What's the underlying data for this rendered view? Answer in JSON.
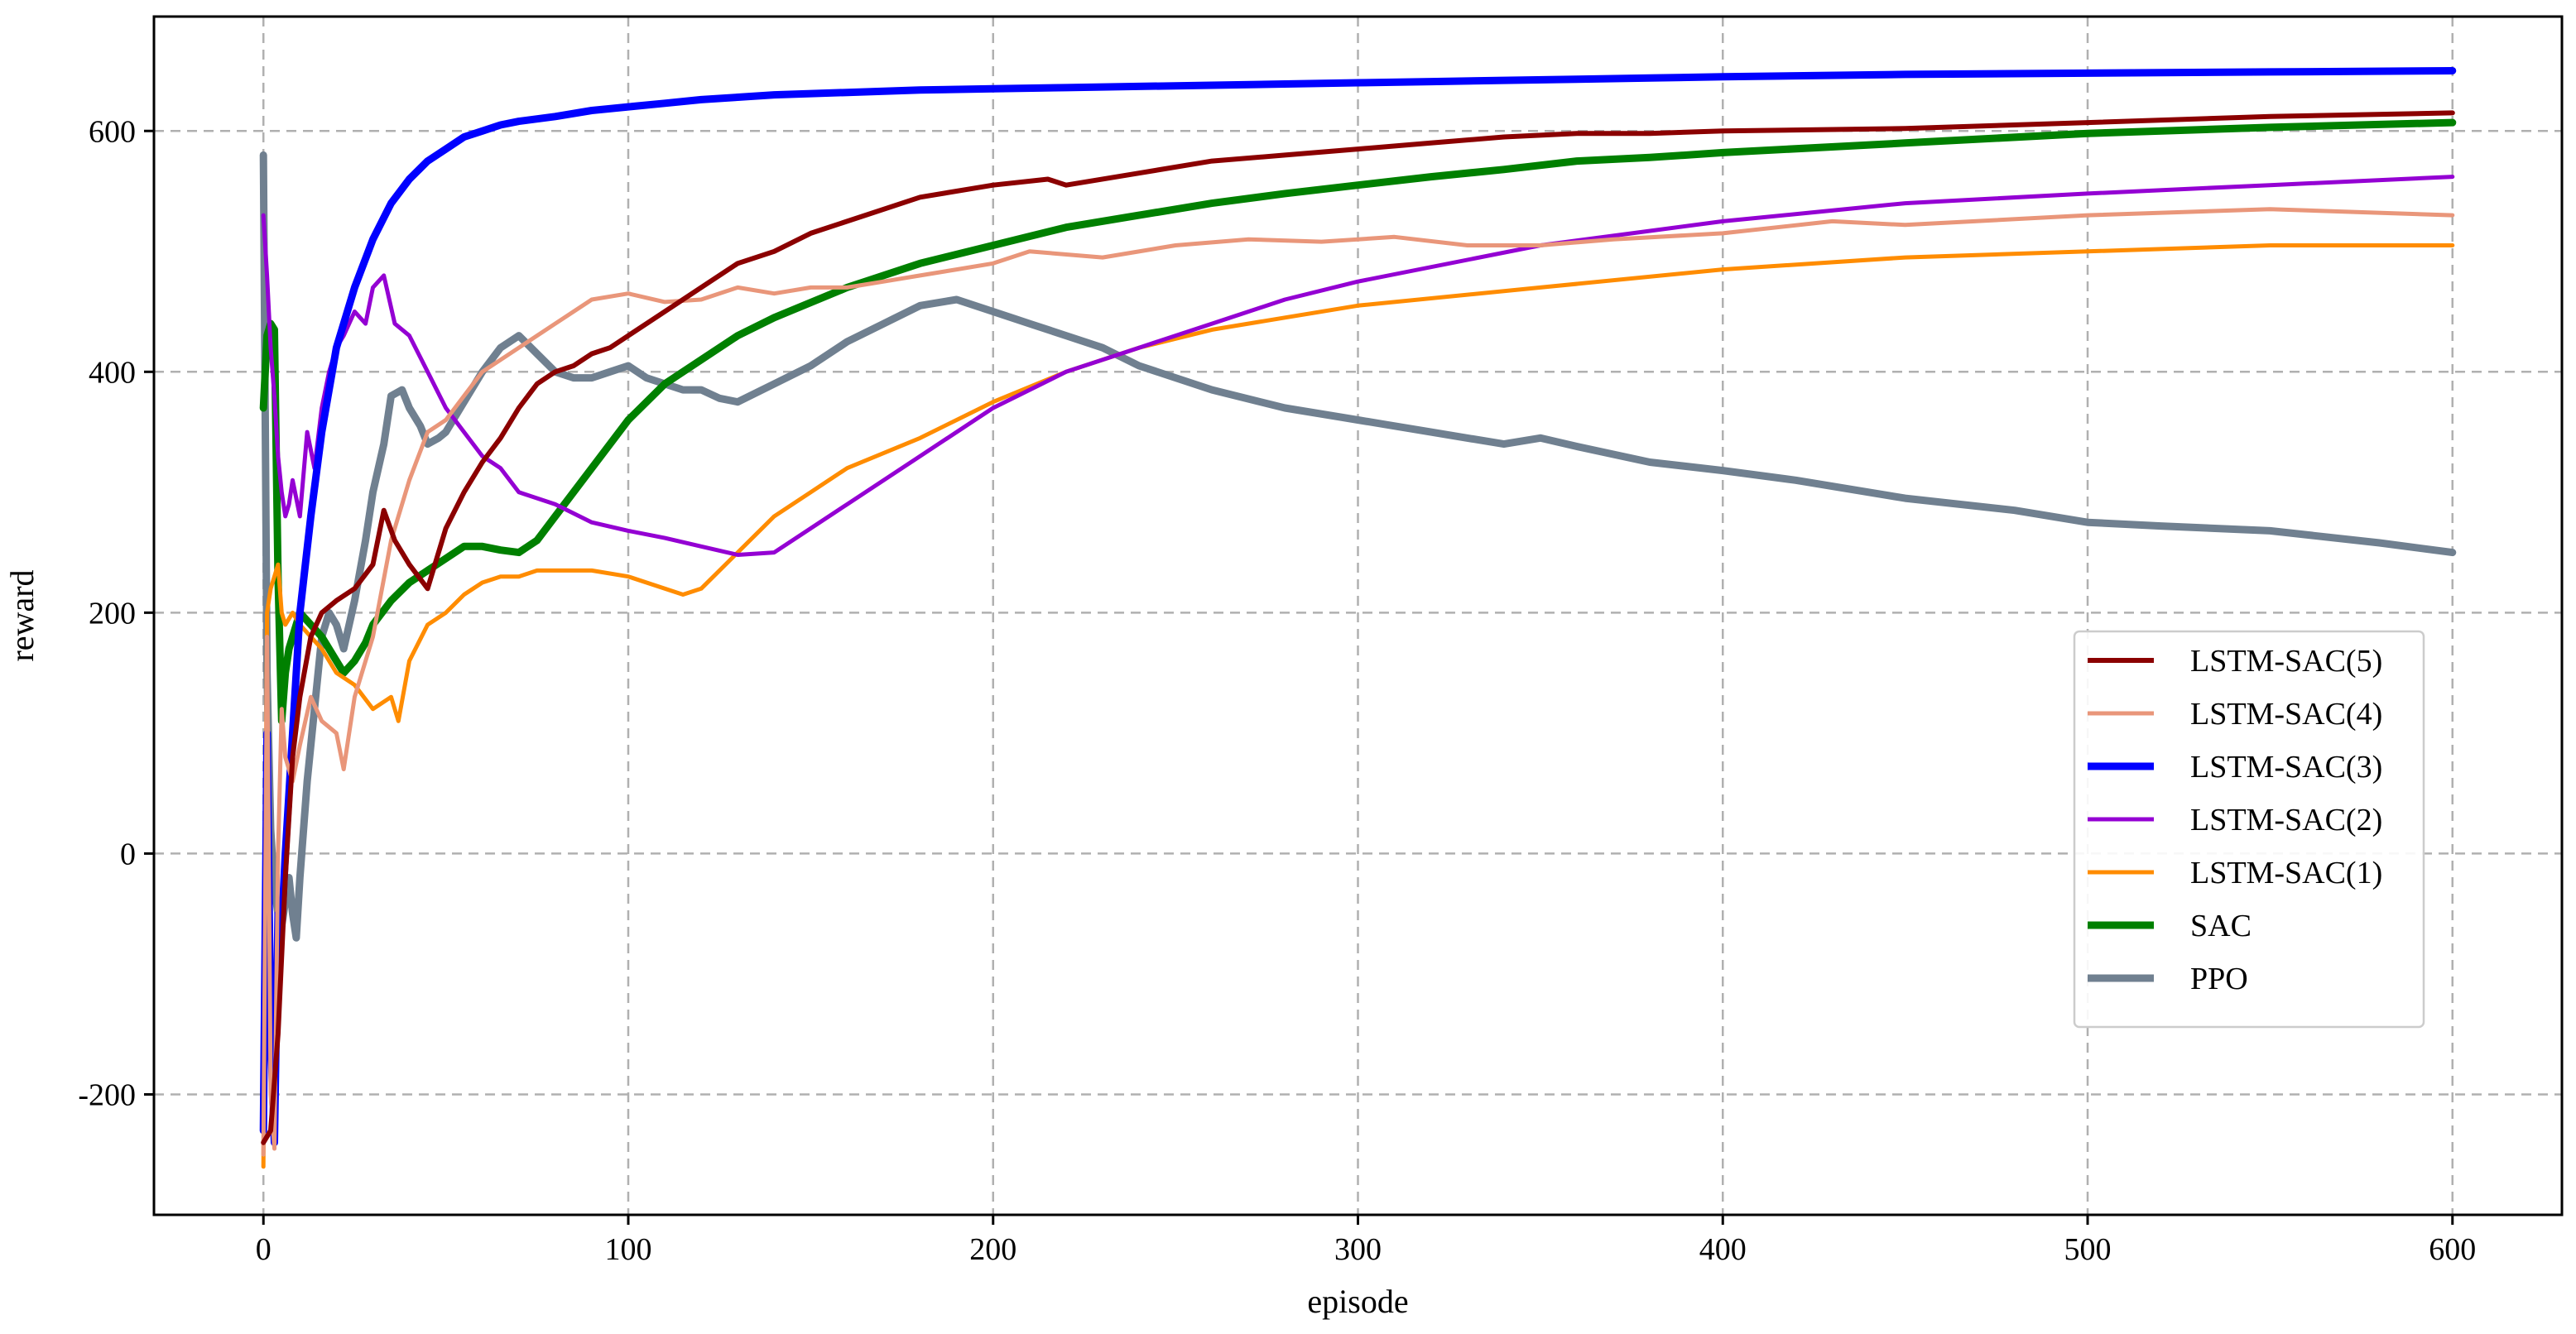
{
  "chart_data": {
    "type": "line",
    "title": "",
    "xlabel": "episode",
    "ylabel": "reward",
    "xlim": [
      -30,
      630
    ],
    "ylim": [
      -300,
      695
    ],
    "xticks": [
      0,
      100,
      200,
      300,
      400,
      500,
      600
    ],
    "yticks": [
      -200,
      0,
      200,
      400,
      600
    ],
    "xtick_labels": [
      "0",
      "100",
      "200",
      "300",
      "400",
      "500",
      "600"
    ],
    "ytick_labels": [
      "-200",
      "0",
      "200",
      "400",
      "600"
    ],
    "grid": true,
    "legend_position": "center-right",
    "series": [
      {
        "name": "LSTM-SAC(5)",
        "color": "#8b0000",
        "width": 6,
        "x": [
          0,
          2,
          4,
          6,
          8,
          10,
          13,
          16,
          20,
          25,
          30,
          33,
          36,
          40,
          45,
          50,
          55,
          60,
          65,
          70,
          75,
          80,
          85,
          90,
          95,
          100,
          110,
          120,
          130,
          140,
          150,
          160,
          180,
          200,
          215,
          220,
          240,
          260,
          280,
          300,
          320,
          340,
          360,
          380,
          400,
          450,
          500,
          550,
          600
        ],
        "values": [
          -240,
          -230,
          -150,
          -20,
          80,
          130,
          180,
          200,
          210,
          220,
          240,
          285,
          260,
          240,
          220,
          270,
          300,
          325,
          345,
          370,
          390,
          400,
          405,
          415,
          420,
          430,
          450,
          470,
          490,
          500,
          515,
          525,
          545,
          555,
          560,
          555,
          565,
          575,
          580,
          585,
          590,
          595,
          598,
          598,
          600,
          602,
          607,
          612,
          615
        ]
      },
      {
        "name": "LSTM-SAC(4)",
        "color": "#e9967a",
        "width": 5,
        "x": [
          0,
          1,
          2,
          3,
          4,
          5,
          6,
          8,
          10,
          13,
          16,
          20,
          22,
          25,
          30,
          35,
          40,
          45,
          50,
          55,
          60,
          65,
          70,
          80,
          90,
          100,
          110,
          120,
          130,
          140,
          150,
          160,
          170,
          180,
          190,
          200,
          210,
          230,
          250,
          270,
          290,
          310,
          330,
          350,
          370,
          400,
          430,
          450,
          500,
          550,
          600
        ],
        "values": [
          -250,
          180,
          -200,
          -245,
          0,
          120,
          80,
          60,
          90,
          130,
          110,
          100,
          70,
          130,
          180,
          260,
          310,
          350,
          360,
          380,
          400,
          410,
          420,
          440,
          460,
          465,
          458,
          460,
          470,
          465,
          470,
          470,
          475,
          480,
          485,
          490,
          500,
          495,
          505,
          510,
          508,
          512,
          505,
          505,
          510,
          515,
          525,
          522,
          530,
          535,
          530
        ]
      },
      {
        "name": "LSTM-SAC(3)",
        "color": "#0000ff",
        "width": 9,
        "x": [
          0,
          1,
          2,
          3,
          4,
          5,
          6,
          8,
          10,
          13,
          16,
          20,
          25,
          30,
          35,
          40,
          45,
          50,
          55,
          60,
          65,
          70,
          80,
          90,
          100,
          110,
          120,
          130,
          140,
          160,
          180,
          200,
          220,
          240,
          260,
          280,
          300,
          320,
          340,
          360,
          380,
          400,
          450,
          500,
          550,
          600
        ],
        "values": [
          -230,
          100,
          -150,
          -240,
          -50,
          -60,
          0,
          100,
          200,
          280,
          350,
          420,
          470,
          510,
          540,
          560,
          575,
          585,
          595,
          600,
          605,
          608,
          612,
          617,
          620,
          623,
          626,
          628,
          630,
          632,
          634,
          635,
          636,
          637,
          638,
          639,
          640,
          641,
          642,
          643,
          644,
          645,
          647,
          648,
          649,
          650
        ]
      },
      {
        "name": "LSTM-SAC(2)",
        "color": "#9400d3",
        "width": 5,
        "x": [
          0,
          1,
          2,
          3,
          4,
          5,
          6,
          7,
          8,
          10,
          12,
          14,
          16,
          18,
          20,
          22,
          25,
          28,
          30,
          33,
          36,
          40,
          45,
          50,
          55,
          60,
          65,
          70,
          80,
          90,
          100,
          110,
          120,
          130,
          140,
          160,
          180,
          200,
          220,
          240,
          260,
          280,
          300,
          350,
          400,
          450,
          500,
          550,
          600
        ],
        "values": [
          530,
          480,
          420,
          380,
          330,
          300,
          280,
          290,
          310,
          280,
          350,
          320,
          370,
          400,
          420,
          430,
          450,
          440,
          470,
          480,
          440,
          430,
          400,
          370,
          350,
          330,
          320,
          300,
          290,
          275,
          268,
          262,
          255,
          248,
          250,
          290,
          330,
          370,
          400,
          420,
          440,
          460,
          475,
          505,
          525,
          540,
          548,
          555,
          562
        ]
      },
      {
        "name": "LSTM-SAC(1)",
        "color": "#ff8c00",
        "width": 5,
        "x": [
          0,
          1,
          2,
          3,
          4,
          5,
          6,
          8,
          10,
          13,
          16,
          20,
          25,
          30,
          35,
          37,
          40,
          45,
          50,
          55,
          60,
          65,
          70,
          75,
          80,
          90,
          100,
          110,
          115,
          120,
          130,
          140,
          150,
          160,
          180,
          200,
          220,
          240,
          260,
          280,
          300,
          350,
          400,
          450,
          500,
          550,
          600
        ],
        "values": [
          -260,
          200,
          220,
          230,
          240,
          200,
          190,
          200,
          190,
          180,
          170,
          150,
          140,
          120,
          130,
          110,
          160,
          190,
          200,
          215,
          225,
          230,
          230,
          235,
          235,
          235,
          230,
          220,
          215,
          220,
          250,
          280,
          300,
          320,
          345,
          375,
          400,
          420,
          435,
          445,
          455,
          470,
          485,
          495,
          500,
          505,
          505
        ]
      },
      {
        "name": "SAC",
        "color": "#008000",
        "width": 9,
        "x": [
          0,
          1,
          2,
          3,
          4,
          5,
          6,
          7,
          8,
          10,
          13,
          16,
          20,
          22,
          25,
          28,
          30,
          35,
          40,
          45,
          50,
          55,
          60,
          65,
          70,
          75,
          80,
          90,
          100,
          110,
          120,
          130,
          140,
          160,
          180,
          200,
          220,
          240,
          260,
          280,
          300,
          320,
          340,
          360,
          380,
          400,
          450,
          500,
          550,
          600
        ],
        "values": [
          370,
          430,
          440,
          435,
          230,
          110,
          150,
          170,
          180,
          200,
          190,
          180,
          160,
          150,
          160,
          175,
          190,
          210,
          225,
          235,
          245,
          255,
          255,
          252,
          250,
          260,
          280,
          320,
          360,
          390,
          410,
          430,
          445,
          470,
          490,
          505,
          520,
          530,
          540,
          548,
          555,
          562,
          568,
          575,
          578,
          582,
          590,
          598,
          603,
          607
        ]
      },
      {
        "name": "PPO",
        "color": "#708090",
        "width": 9,
        "x": [
          0,
          1,
          2,
          3,
          4,
          5,
          6,
          7,
          8,
          9,
          10,
          12,
          14,
          16,
          18,
          20,
          22,
          25,
          28,
          30,
          33,
          35,
          38,
          40,
          43,
          45,
          48,
          50,
          55,
          60,
          65,
          70,
          75,
          80,
          85,
          90,
          95,
          100,
          105,
          110,
          115,
          120,
          125,
          130,
          140,
          150,
          160,
          170,
          180,
          190,
          200,
          210,
          220,
          230,
          240,
          260,
          280,
          300,
          320,
          340,
          350,
          360,
          380,
          400,
          420,
          450,
          480,
          500,
          520,
          550,
          580,
          600
        ],
        "values": [
          580,
          150,
          20,
          -30,
          -50,
          -60,
          -40,
          -20,
          -50,
          -70,
          -20,
          60,
          120,
          180,
          200,
          190,
          170,
          210,
          260,
          300,
          340,
          380,
          385,
          370,
          355,
          340,
          345,
          350,
          375,
          400,
          420,
          430,
          415,
          400,
          395,
          395,
          400,
          405,
          395,
          390,
          385,
          385,
          378,
          375,
          390,
          405,
          425,
          440,
          455,
          460,
          450,
          440,
          430,
          420,
          405,
          385,
          370,
          360,
          350,
          340,
          345,
          338,
          325,
          318,
          310,
          295,
          285,
          275,
          272,
          268,
          258,
          250
        ]
      }
    ]
  }
}
